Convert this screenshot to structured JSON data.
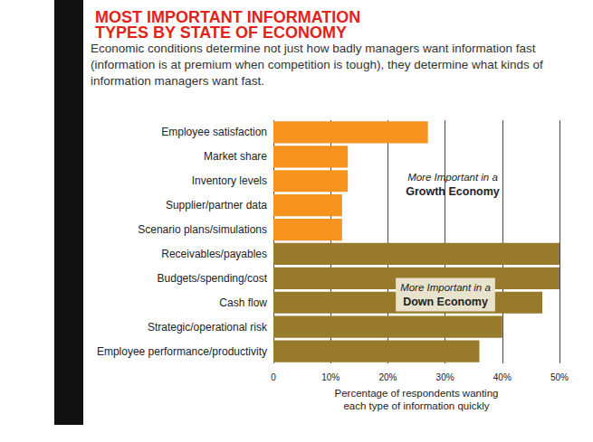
{
  "chart_data": {
    "type": "bar",
    "orientation": "horizontal",
    "title": "MOST IMPORTANT INFORMATION\nTYPES BY STATE OF ECONOMY",
    "subtitle": "Economic conditions determine not just how badly managers want information fast (information is at premium when competition is tough), they determine what kinds of information managers want fast.",
    "categories": [
      "Employee satisfaction",
      "Market share",
      "Inventory levels",
      "Supplier/partner data",
      "Scenario plans/simulations",
      "Receivables/payables",
      "Budgets/spending/cost",
      "Cash flow",
      "Strategic/operational risk",
      "Employee performance/productivity"
    ],
    "values": [
      27,
      13,
      13,
      12,
      12,
      50,
      50,
      47,
      40,
      36
    ],
    "colors": [
      "#f6921e",
      "#f6921e",
      "#f6921e",
      "#f6921e",
      "#f6921e",
      "#987a2d",
      "#987a2d",
      "#987a2d",
      "#987a2d",
      "#987a2d"
    ],
    "xlabel": "Percentage of respondents wanting\neach type of information quickly",
    "xlim": [
      0,
      50
    ],
    "xticks": [
      0,
      {
        "value": 10,
        "label": "10%"
      },
      {
        "value": 20,
        "label": "20%"
      },
      {
        "value": 30,
        "label": "30%"
      },
      {
        "value": 40,
        "label": "40%"
      },
      {
        "value": 50,
        "label": "50%"
      }
    ],
    "grid": true,
    "annotations": [
      {
        "lines": [
          "More Important in a",
          "Growth Economy"
        ]
      },
      {
        "lines": [
          "More Important in a",
          "Down Economy"
        ]
      }
    ]
  }
}
